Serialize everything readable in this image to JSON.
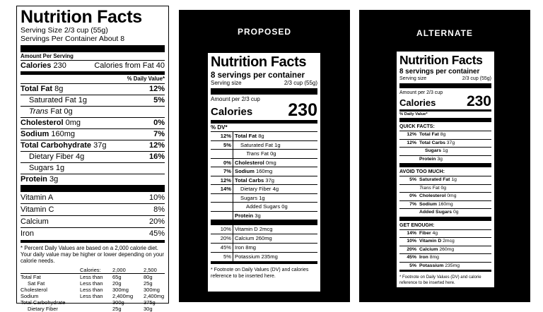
{
  "current": {
    "title": "Nutrition Facts",
    "serving_size": "Serving Size 2/3 cup (55g)",
    "servings_per_container": "Servings Per Container About 8",
    "amount_per_serving": "Amount Per Serving",
    "calories_label": "Calories",
    "calories_value": "230",
    "calories_from_fat": "Calories from Fat 40",
    "daily_value_header": "% Daily Value*",
    "nutrients": [
      {
        "name": "Total Fat",
        "amount": "8g",
        "pct": "12%"
      },
      {
        "name": "Saturated Fat",
        "amount": "1g",
        "pct": "5%"
      },
      {
        "name": "Trans",
        "amount": "Fat 0g",
        "pct": ""
      },
      {
        "name": "Cholesterol",
        "amount": "0mg",
        "pct": "0%"
      },
      {
        "name": "Sodium",
        "amount": "160mg",
        "pct": "7%"
      },
      {
        "name": "Total Carbohydrate",
        "amount": "37g",
        "pct": "12%"
      },
      {
        "name": "Dietary Fiber",
        "amount": "4g",
        "pct": "16%"
      },
      {
        "name": "Sugars",
        "amount": "1g",
        "pct": ""
      },
      {
        "name": "Protein",
        "amount": "3g",
        "pct": ""
      }
    ],
    "vitamins": [
      {
        "name": "Vitamin A",
        "pct": "10%"
      },
      {
        "name": "Vitamin C",
        "pct": "8%"
      },
      {
        "name": "Calcium",
        "pct": "20%"
      },
      {
        "name": "Iron",
        "pct": "45%"
      }
    ],
    "footnote": "* Percent Daily Values are based on a 2,000 calorie diet. Your daily value may be higher or lower depending on your calorie needs.",
    "dv_table": {
      "header": [
        "",
        "Calories:",
        "2,000",
        "2,500"
      ],
      "rows": [
        [
          "Total Fat",
          "Less than",
          "65g",
          "80g"
        ],
        [
          "Sat Fat",
          "Less than",
          "20g",
          "25g"
        ],
        [
          "Cholesterol",
          "Less than",
          "300mg",
          "300mg"
        ],
        [
          "Sodium",
          "Less than",
          "2,400mg",
          "2,400mg"
        ],
        [
          "Total Carbohydrate",
          "",
          "300g",
          "375g"
        ],
        [
          "Dietary Fiber",
          "",
          "25g",
          "30g"
        ]
      ]
    }
  },
  "proposed": {
    "header": "PROPOSED",
    "title": "Nutrition Facts",
    "servings": "8 servings per container",
    "serving_size_label": "Serving size",
    "serving_size_value": "2/3 cup (55g)",
    "amount_per": "Amount per 2/3 cup",
    "calories_label": "Calories",
    "calories_value": "230",
    "dv_header": "% DV*",
    "rows": [
      {
        "pct": "12%",
        "name": "Total Fat",
        "amount": "8g"
      },
      {
        "pct": "5%",
        "name": "Saturated Fat",
        "amount": "1g"
      },
      {
        "pct": "",
        "name": "Trans",
        "amount": "Fat 0g"
      },
      {
        "pct": "0%",
        "name": "Cholesterol",
        "amount": "0mg"
      },
      {
        "pct": "7%",
        "name": "Sodium",
        "amount": "160mg"
      },
      {
        "pct": "12%",
        "name": "Total Carbs",
        "amount": "37g"
      },
      {
        "pct": "14%",
        "name": "Dietary Fiber",
        "amount": "4g"
      },
      {
        "pct": "",
        "name": "Sugars",
        "amount": "1g"
      },
      {
        "pct": "",
        "name": "Added Sugars",
        "amount": "0g"
      },
      {
        "pct": "",
        "name": "Protein",
        "amount": "3g"
      }
    ],
    "vitamins": [
      {
        "pct": "10%",
        "name": "Vitamin D",
        "amount": "2mcg"
      },
      {
        "pct": "20%",
        "name": "Calcium",
        "amount": "260mg"
      },
      {
        "pct": "45%",
        "name": "Iron",
        "amount": "8mg"
      },
      {
        "pct": "5%",
        "name": "Potassium",
        "amount": "235mg"
      }
    ],
    "footnote": "* Footnote on Daily Values (DV) and calories reference to be inserted here."
  },
  "alternate": {
    "header": "ALTERNATE",
    "title": "Nutrition Facts",
    "servings": "8 servings per container",
    "serving_size_label": "Serving size",
    "serving_size_value": "2/3 cup (55g)",
    "amount_per": "Amount per 2/3 cup",
    "calories_label": "Calories",
    "calories_value": "230",
    "dv_header": "% Daily Value*",
    "quick_facts_title": "QUICK FACTS:",
    "quick_facts": [
      {
        "pct": "12%",
        "name": "Total Fat",
        "amount": "8g"
      },
      {
        "pct": "12%",
        "name": "Total Carbs",
        "amount": "37g"
      },
      {
        "pct": "",
        "name": "Sugars",
        "amount": "1g"
      },
      {
        "pct": "",
        "name": "Protein",
        "amount": "3g"
      }
    ],
    "avoid_title": "AVOID TOO MUCH:",
    "avoid": [
      {
        "pct": "5%",
        "name": "Saturated Fat",
        "amount": "1g"
      },
      {
        "pct": "",
        "name": "Trans",
        "amount": "Fat 0g"
      },
      {
        "pct": "0%",
        "name": "Cholesterol",
        "amount": "0mg"
      },
      {
        "pct": "7%",
        "name": "Sodium",
        "amount": "160mg"
      },
      {
        "pct": "",
        "name": "Added Sugars",
        "amount": "0g"
      }
    ],
    "get_enough_title": "GET ENOUGH:",
    "get_enough": [
      {
        "pct": "14%",
        "name": "Fiber",
        "amount": "4g"
      },
      {
        "pct": "10%",
        "name": "Vitamin D",
        "amount": "2mcg"
      },
      {
        "pct": "20%",
        "name": "Calcium",
        "amount": "260mg"
      },
      {
        "pct": "45%",
        "name": "Iron",
        "amount": "8mg"
      },
      {
        "pct": "5%",
        "name": "Potassium",
        "amount": "235mg"
      }
    ],
    "footnote": "* Footnote on Daily Values (DV) and calorie reference to be inserted here."
  }
}
